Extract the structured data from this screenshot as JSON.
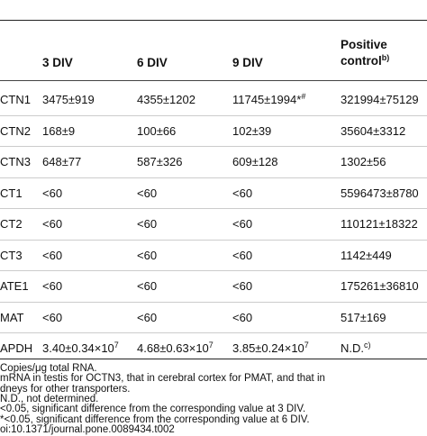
{
  "table": {
    "header": [
      {
        "text": "3 DIV"
      },
      {
        "text": "6 DIV"
      },
      {
        "text": "9 DIV"
      },
      {
        "text": "Positive",
        "text2": "control",
        "sup": "b)"
      }
    ],
    "rows": [
      {
        "label": "CTN1",
        "cells": [
          {
            "text": "3475±919"
          },
          {
            "text": "4355±1202"
          },
          {
            "text": "11745±1994*",
            "sup": "#"
          },
          {
            "text": "321994±75129"
          }
        ]
      },
      {
        "label": "CTN2",
        "cells": [
          {
            "text": "168±9"
          },
          {
            "text": "100±66"
          },
          {
            "text": "102±39"
          },
          {
            "text": "35604±3312"
          }
        ]
      },
      {
        "label": "CTN3",
        "cells": [
          {
            "text": "648±77"
          },
          {
            "text": "587±326"
          },
          {
            "text": "609±128"
          },
          {
            "text": "1302±56"
          }
        ]
      },
      {
        "label": "CT1",
        "cells": [
          {
            "text": "<60"
          },
          {
            "text": "<60"
          },
          {
            "text": "<60"
          },
          {
            "text": "5596473±8780"
          }
        ]
      },
      {
        "label": "CT2",
        "cells": [
          {
            "text": "<60"
          },
          {
            "text": "<60"
          },
          {
            "text": "<60"
          },
          {
            "text": "110121±18322"
          }
        ]
      },
      {
        "label": "CT3",
        "cells": [
          {
            "text": "<60"
          },
          {
            "text": "<60"
          },
          {
            "text": "<60"
          },
          {
            "text": "1142±449"
          }
        ]
      },
      {
        "label": "ATE1",
        "cells": [
          {
            "text": "<60"
          },
          {
            "text": "<60"
          },
          {
            "text": "<60"
          },
          {
            "text": "175261±36810"
          }
        ]
      },
      {
        "label": "MAT",
        "cells": [
          {
            "text": "<60"
          },
          {
            "text": "<60"
          },
          {
            "text": "<60"
          },
          {
            "text": "517±169"
          }
        ]
      },
      {
        "label": "APDH",
        "cells": [
          {
            "text": "3.40±0.34×10",
            "sup": "7"
          },
          {
            "text": "4.68±0.63×10",
            "sup": "7"
          },
          {
            "text": "3.85±0.24×10",
            "sup": "7"
          },
          {
            "text": "N.D.",
            "sup": "c)"
          }
        ]
      }
    ],
    "footnotes": [
      "Copies/μg total RNA.",
      "mRNA in testis for OCTN3, that in cerebral cortex for PMAT, and that in",
      "dneys for other transporters.",
      "N.D., not determined.",
      "<0.05, significant difference from the corresponding value at 3 DIV.",
      "*<0.05, significant difference from the corresponding value at 6 DIV.",
      "oi:10.1371/journal.pone.0089434.t002"
    ]
  }
}
